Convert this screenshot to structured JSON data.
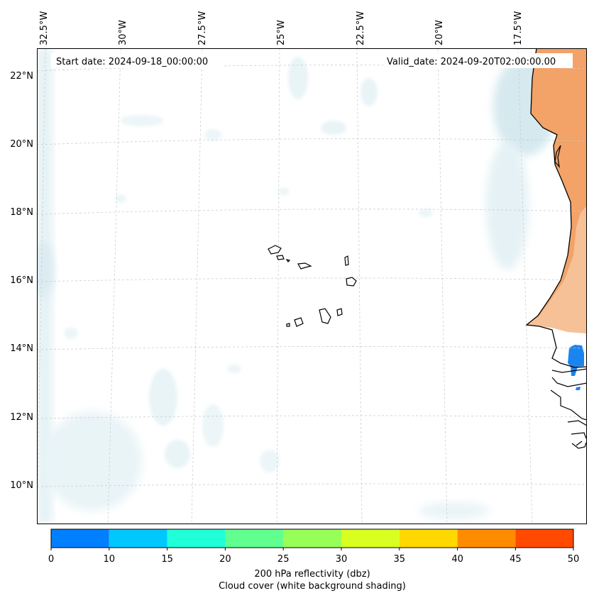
{
  "map": {
    "start_date": "Start date: 2024-09-18_00:00:00",
    "valid_date": "Valid_date: 2024-09-20T02:00:00.00",
    "lon_labels": [
      "32.5°W",
      "30°W",
      "27.5°W",
      "25°W",
      "22.5°W",
      "20°W",
      "17.5°W"
    ],
    "lat_labels": [
      "22°N",
      "20°N",
      "18°N",
      "16°N",
      "14°N",
      "12°N",
      "10°N"
    ]
  },
  "colorbar": {
    "ticks": [
      "0",
      "10",
      "15",
      "20",
      "25",
      "30",
      "35",
      "40",
      "45",
      "50"
    ],
    "colors": [
      "#0080ff",
      "#00c8ff",
      "#20ffd8",
      "#60ff90",
      "#98ff58",
      "#d8ff20",
      "#ffd800",
      "#ff8c00",
      "#ff4a00"
    ],
    "label_line1": "200 hPa reflectivity (dbz)",
    "label_line2": "Cloud cover (white background shading)"
  },
  "colors": {
    "cloud": "#cfe7ee",
    "reflectivity_orange": "#f3a268",
    "reflectivity_blue": "#1a85f0"
  }
}
